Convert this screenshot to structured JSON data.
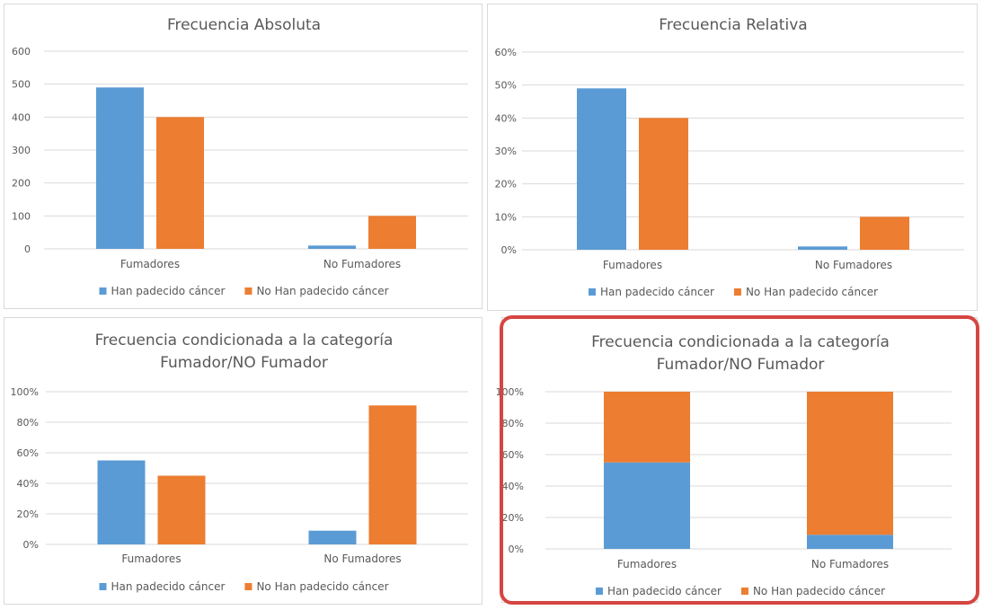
{
  "colors": {
    "series1": "#5b9bd5",
    "series2": "#ed7d31",
    "grid": "#d9d9d9",
    "highlight": "#d64541"
  },
  "chart_data": [
    {
      "type": "bar",
      "title_lines": [
        "Frecuencia Absoluta"
      ],
      "categories": [
        "Fumadores",
        "No Fumadores"
      ],
      "series": [
        {
          "name": "Han padecido cáncer",
          "values": [
            490,
            10
          ]
        },
        {
          "name": "No Han padecido cáncer",
          "values": [
            400,
            100
          ]
        }
      ],
      "ylim": [
        0,
        600
      ],
      "yticks": [
        "0",
        "100",
        "200",
        "300",
        "400",
        "500",
        "600"
      ],
      "grid": true,
      "legend": "bottom"
    },
    {
      "type": "bar",
      "title_lines": [
        "Frecuencia Relativa"
      ],
      "categories": [
        "Fumadores",
        "No Fumadores"
      ],
      "series": [
        {
          "name": "Han padecido cáncer",
          "values": [
            49,
            1
          ]
        },
        {
          "name": "No Han padecido cáncer",
          "values": [
            40,
            10
          ]
        }
      ],
      "ylim": [
        0,
        60
      ],
      "yticks": [
        "0%",
        "10%",
        "20%",
        "30%",
        "40%",
        "50%",
        "60%"
      ],
      "grid": true,
      "legend": "bottom"
    },
    {
      "type": "bar",
      "title_lines": [
        "Frecuencia condicionada a la categoría",
        "Fumador/NO Fumador"
      ],
      "categories": [
        "Fumadores",
        "No Fumadores"
      ],
      "series": [
        {
          "name": "Han padecido cáncer",
          "values": [
            55,
            9
          ]
        },
        {
          "name": "No Han padecido cáncer",
          "values": [
            45,
            91
          ]
        }
      ],
      "ylim": [
        0,
        100
      ],
      "yticks": [
        "0%",
        "20%",
        "40%",
        "60%",
        "80%",
        "100%"
      ],
      "grid": true,
      "legend": "bottom"
    },
    {
      "type": "bar",
      "stacked": true,
      "title_lines": [
        "Frecuencia condicionada a la categoría",
        "Fumador/NO Fumador"
      ],
      "categories": [
        "Fumadores",
        "No Fumadores"
      ],
      "series": [
        {
          "name": "Han padecido cáncer",
          "values": [
            55,
            9
          ]
        },
        {
          "name": "No Han padecido cáncer",
          "values": [
            45,
            91
          ]
        }
      ],
      "ylim": [
        0,
        100
      ],
      "yticks": [
        "0%",
        "20%",
        "40%",
        "60%",
        "80%",
        "100%"
      ],
      "grid": true,
      "legend": "bottom",
      "highlighted": true
    }
  ]
}
